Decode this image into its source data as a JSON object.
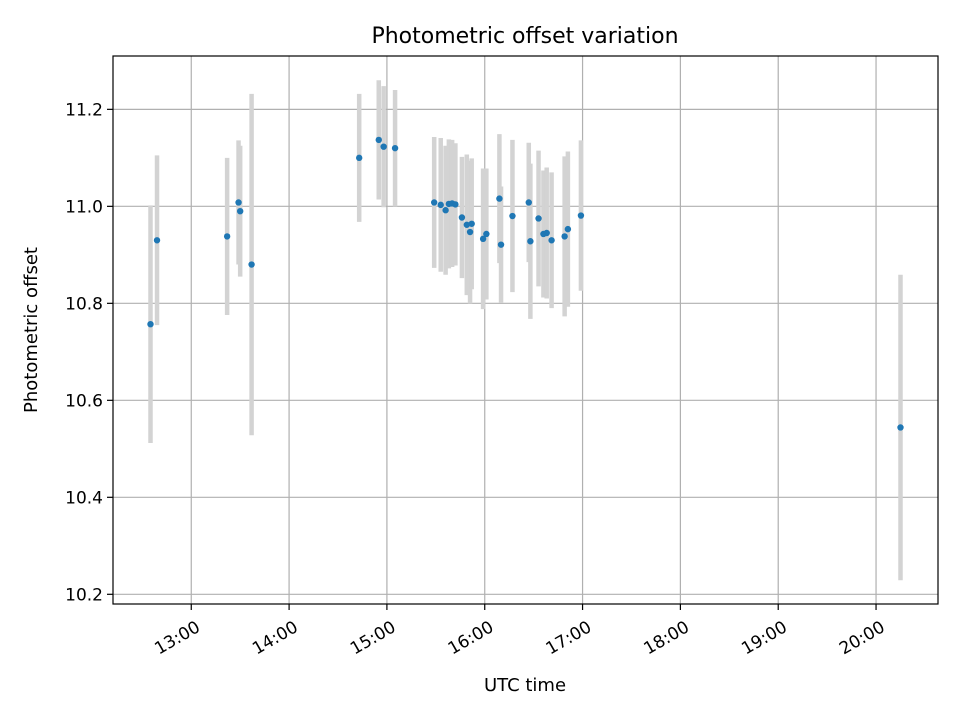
{
  "chart_data": {
    "type": "scatter",
    "title": "Photometric offset variation",
    "xlabel": "UTC time",
    "ylabel": "Photometric offset",
    "x_unit": "hours UTC",
    "xlim": [
      "12:12",
      "20:38"
    ],
    "ylim": [
      10.18,
      11.31
    ],
    "xticks": [
      "13:00",
      "14:00",
      "15:00",
      "16:00",
      "17:00",
      "18:00",
      "19:00",
      "20:00"
    ],
    "yticks": [
      "10.2",
      "10.4",
      "10.6",
      "10.8",
      "11.0",
      "11.2"
    ],
    "grid": true,
    "marker_color": "#1f77b4",
    "errorbar_color": "#d3d3d3",
    "series": [
      {
        "points": [
          {
            "t": "12:35",
            "y": 10.757,
            "err": 0.245
          },
          {
            "t": "12:39",
            "y": 10.93,
            "err": 0.175
          },
          {
            "t": "13:22",
            "y": 10.938,
            "err": 0.162
          },
          {
            "t": "13:29",
            "y": 11.008,
            "err": 0.128
          },
          {
            "t": "13:30",
            "y": 10.99,
            "err": 0.135
          },
          {
            "t": "13:37",
            "y": 10.88,
            "err": 0.352
          },
          {
            "t": "14:43",
            "y": 11.1,
            "err": 0.132
          },
          {
            "t": "14:55",
            "y": 11.137,
            "err": 0.123
          },
          {
            "t": "14:58",
            "y": 11.123,
            "err": 0.125
          },
          {
            "t": "15:05",
            "y": 11.12,
            "err": 0.12
          },
          {
            "t": "15:29",
            "y": 11.008,
            "err": 0.135
          },
          {
            "t": "15:33",
            "y": 11.003,
            "err": 0.138
          },
          {
            "t": "15:36",
            "y": 10.992,
            "err": 0.133
          },
          {
            "t": "15:38",
            "y": 11.005,
            "err": 0.133
          },
          {
            "t": "15:40",
            "y": 11.006,
            "err": 0.131
          },
          {
            "t": "15:42",
            "y": 11.004,
            "err": 0.126
          },
          {
            "t": "15:46",
            "y": 10.977,
            "err": 0.125
          },
          {
            "t": "15:49",
            "y": 10.962,
            "err": 0.145
          },
          {
            "t": "15:51",
            "y": 10.947,
            "err": 0.147
          },
          {
            "t": "15:52",
            "y": 10.964,
            "err": 0.135
          },
          {
            "t": "15:59",
            "y": 10.933,
            "err": 0.145
          },
          {
            "t": "16:01",
            "y": 10.943,
            "err": 0.135
          },
          {
            "t": "16:09",
            "y": 11.016,
            "err": 0.133
          },
          {
            "t": "16:10",
            "y": 10.921,
            "err": 0.12
          },
          {
            "t": "16:17",
            "y": 10.98,
            "err": 0.157
          },
          {
            "t": "16:27",
            "y": 11.008,
            "err": 0.123
          },
          {
            "t": "16:28",
            "y": 10.928,
            "err": 0.16
          },
          {
            "t": "16:33",
            "y": 10.975,
            "err": 0.14
          },
          {
            "t": "16:36",
            "y": 10.943,
            "err": 0.131
          },
          {
            "t": "16:38",
            "y": 10.945,
            "err": 0.135
          },
          {
            "t": "16:41",
            "y": 10.93,
            "err": 0.14
          },
          {
            "t": "16:49",
            "y": 10.938,
            "err": 0.165
          },
          {
            "t": "16:51",
            "y": 10.953,
            "err": 0.16
          },
          {
            "t": "16:59",
            "y": 10.981,
            "err": 0.155
          },
          {
            "t": "20:15",
            "y": 10.544,
            "err": 0.315
          }
        ]
      }
    ]
  }
}
